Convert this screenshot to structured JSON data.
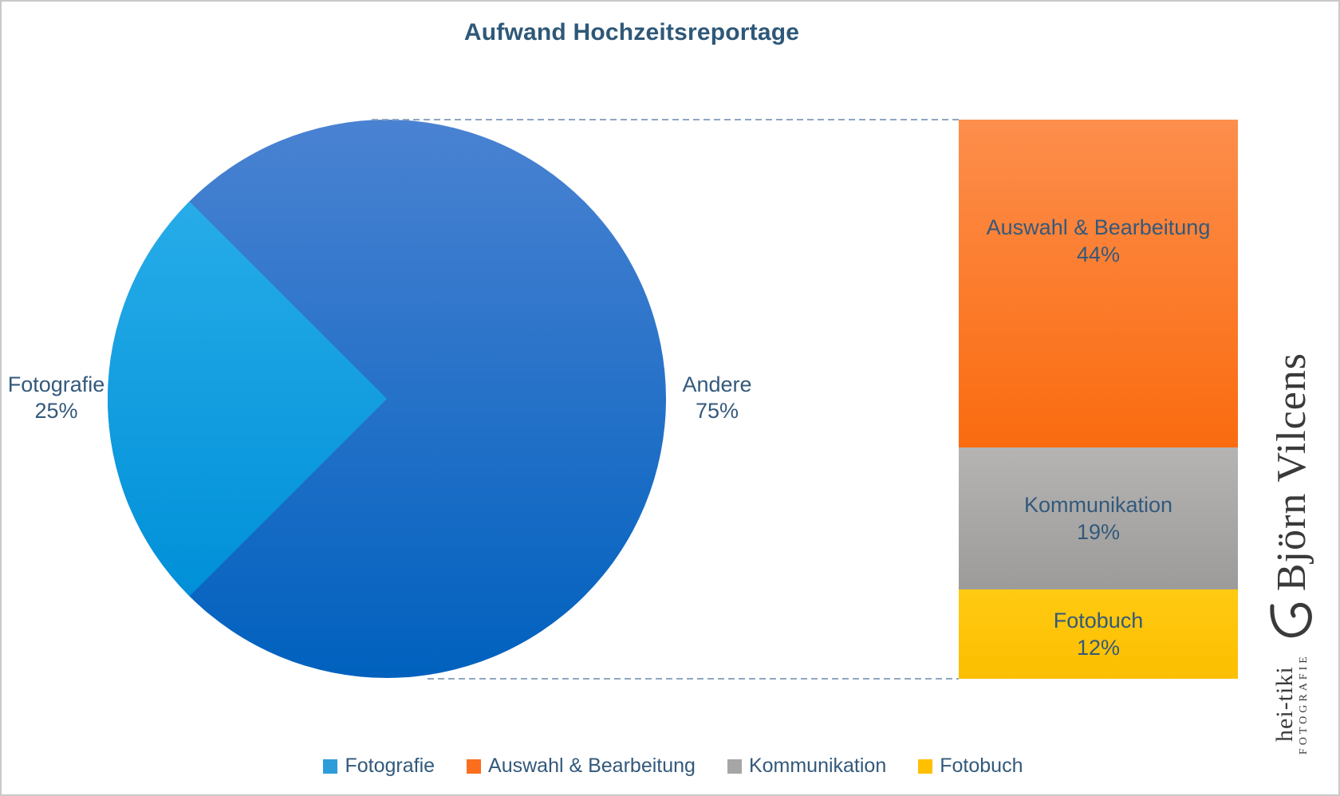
{
  "title": "Aufwand Hochzeitsreportage",
  "chart_data": {
    "type": "pie",
    "subtype": "bar-of-pie",
    "title": "Aufwand Hochzeitsreportage",
    "pie": {
      "labels": [
        "Fotografie",
        "Andere"
      ],
      "values_pct": [
        25,
        75
      ]
    },
    "bar_breakdown": {
      "parent_slice": "Andere",
      "labels": [
        "Auswahl & Bearbeitung",
        "Kommunikation",
        "Fotobuch"
      ],
      "values_pct": [
        44,
        19,
        12
      ]
    },
    "legend_position": "bottom",
    "legend_entries": [
      "Fotografie",
      "Auswahl & Bearbeitung",
      "Kommunikation",
      "Fotobuch"
    ],
    "colors": {
      "fotografie": "#2E9CD9",
      "auswahl_bearbeitung": "#FA6E1E",
      "kommunikation": "#A6A6A6",
      "fotobuch": "#FFC000"
    }
  },
  "pie_labels": {
    "left": {
      "name": "Fotografie",
      "pct": "25%"
    },
    "right": {
      "name": "Andere",
      "pct": "75%"
    }
  },
  "bar_segments": [
    {
      "name": "Auswahl & Bearbeitung",
      "pct": "44%",
      "gradient": "linear-gradient(180deg,#FD8E4C,#FA6B0F)"
    },
    {
      "name": "Kommunikation",
      "pct": "19%",
      "gradient": "linear-gradient(180deg,#B5B4B3,#9C9B9A)"
    },
    {
      "name": "Fotobuch",
      "pct": "12%",
      "gradient": "linear-gradient(180deg,#FFCA12,#FCBE00)"
    }
  ],
  "legend": {
    "items": [
      {
        "label": "Fotografie",
        "color": "#2E9CD9"
      },
      {
        "label": "Auswahl & Bearbeitung",
        "color": "#FA6E1E"
      },
      {
        "label": "Kommunikation",
        "color": "#A6A6A6"
      },
      {
        "label": "Fotobuch",
        "color": "#FFC000"
      }
    ]
  },
  "watermark": {
    "studio": "hei-tiki",
    "studio_sub": "FOTOGRAFIE",
    "name": "Björn Vilcens"
  },
  "style_colors": {
    "pie_main_top": "#4A82D2",
    "pie_main_bottom": "#0061BE",
    "wedge_top": "#27ACE8",
    "wedge_bottom": "#0090D8",
    "dashed_line": "#8FA6C0",
    "text": "#33597B",
    "title": "#2E5878"
  }
}
